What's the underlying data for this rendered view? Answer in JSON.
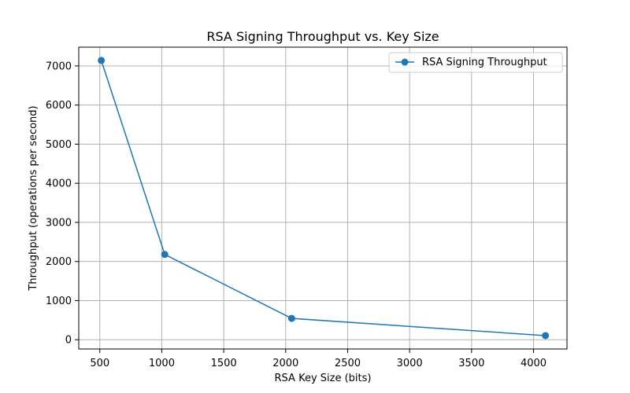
{
  "chart_data": {
    "type": "line",
    "title": "RSA Signing Throughput vs. Key Size",
    "xlabel": "RSA Key Size (bits)",
    "ylabel": "Throughput (operations per second)",
    "x": [
      512,
      1024,
      2048,
      4096
    ],
    "series": [
      {
        "name": "RSA Signing Throughput",
        "values": [
          7140,
          2180,
          545,
          105
        ],
        "color": "#1f77b4",
        "marker": "circle"
      }
    ],
    "xlim": [
      330,
      4270
    ],
    "ylim": [
      -237,
      7480
    ],
    "xticks": [
      500,
      1000,
      1500,
      2000,
      2500,
      3000,
      3500,
      4000
    ],
    "yticks": [
      0,
      1000,
      2000,
      3000,
      4000,
      5000,
      6000,
      7000
    ],
    "grid": true,
    "legend_position": "upper right"
  }
}
